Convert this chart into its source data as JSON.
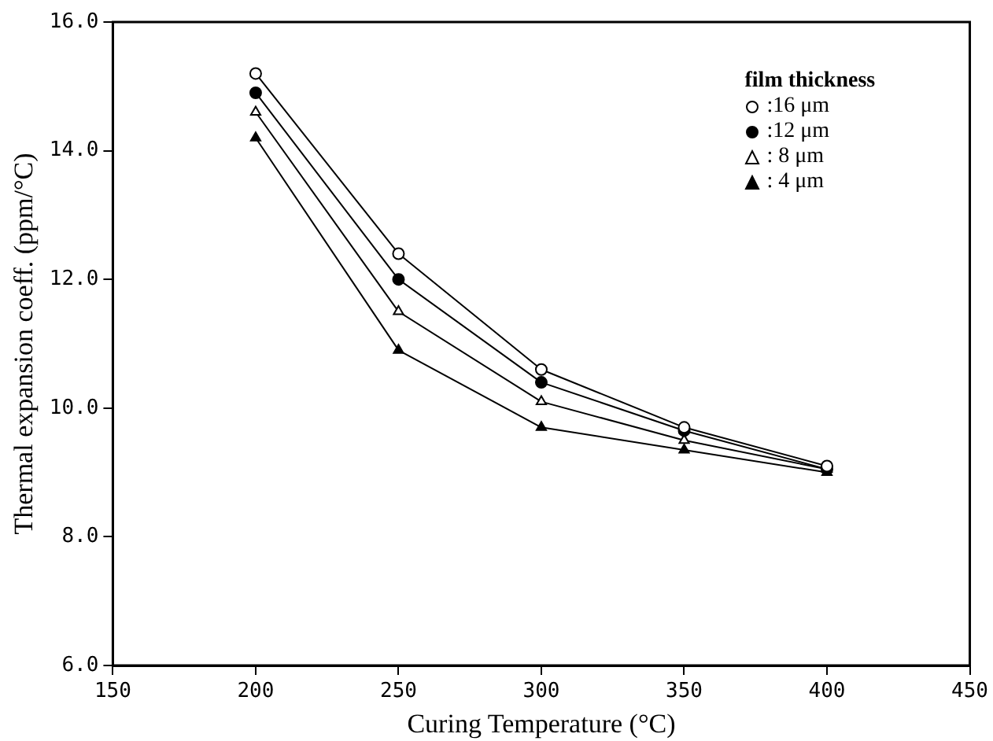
{
  "chart_data": {
    "type": "line",
    "xlabel": "Curing Temperature (°C)",
    "ylabel": "Thermal expansion coeff. (ppm/°C)",
    "legend_title": "film thickness",
    "legend": "top right",
    "x": [
      200,
      250,
      300,
      350,
      400
    ],
    "xlim": [
      150,
      450
    ],
    "xticks": [
      150,
      200,
      250,
      300,
      350,
      400,
      450
    ],
    "ylim": [
      6,
      16
    ],
    "yticks": [
      {
        "value": 6,
        "label": "6.0"
      },
      {
        "value": 8,
        "label": "8.0"
      },
      {
        "value": 10,
        "label": "10.0"
      },
      {
        "value": 12,
        "label": "12.0"
      },
      {
        "value": 14,
        "label": "14.0"
      },
      {
        "value": 16,
        "label": "16.0"
      }
    ],
    "grid": false,
    "line_style": "solid",
    "series": [
      {
        "name": ":16 μm",
        "color": "#000000",
        "marker": "circle-open",
        "values": [
          15.2,
          12.4,
          10.6,
          9.7,
          9.1
        ]
      },
      {
        "name": ":12 μm",
        "color": "#000000",
        "marker": "circle",
        "values": [
          14.9,
          12.0,
          10.4,
          9.65,
          9.05
        ]
      },
      {
        "name": ": 8 μm",
        "color": "#000000",
        "marker": "triangle-open",
        "values": [
          14.6,
          11.5,
          10.1,
          9.5,
          9.05
        ]
      },
      {
        "name": ": 4 μm",
        "color": "#000000",
        "marker": "triangle",
        "values": [
          14.2,
          10.9,
          9.7,
          9.35,
          9.0
        ]
      }
    ]
  }
}
